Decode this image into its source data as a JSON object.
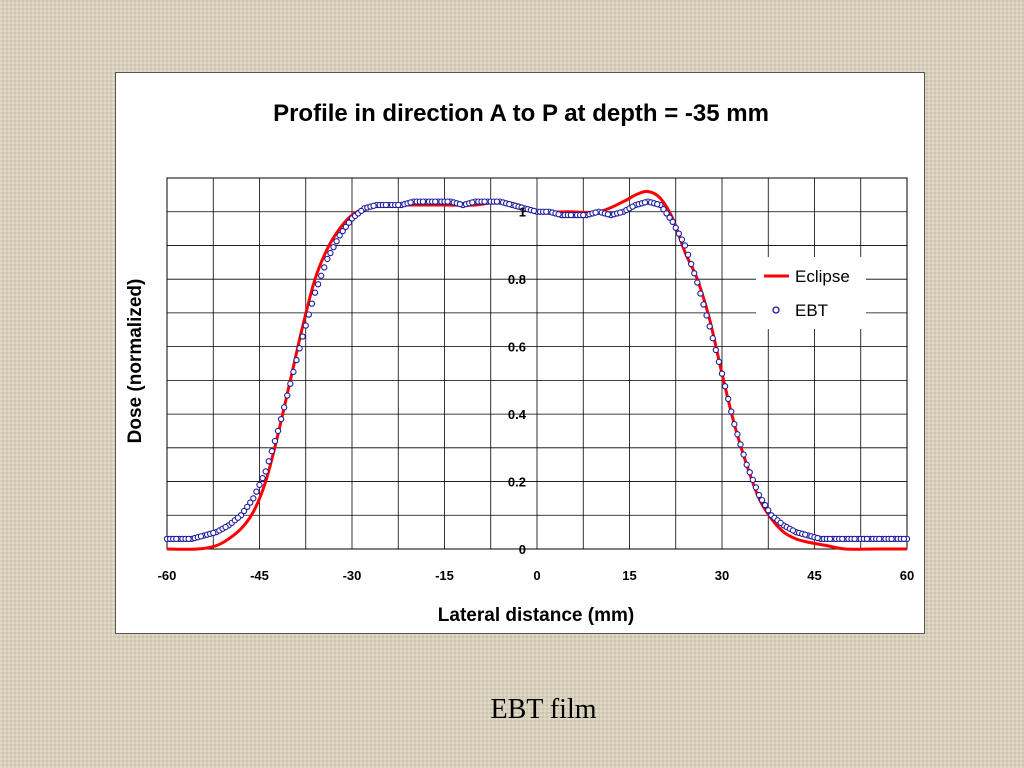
{
  "caption": "EBT film",
  "chart_data": {
    "type": "line",
    "title": "Profile in direction A to P at depth = -35 mm",
    "xlabel": "Lateral distance (mm)",
    "ylabel": "Dose (normalized)",
    "xlim": [
      -60,
      60
    ],
    "ylim": [
      0,
      1.1
    ],
    "x_ticks": [
      "-60",
      "-45",
      "-30",
      "-15",
      "0",
      "15",
      "30",
      "45",
      "60"
    ],
    "y_ticks": [
      "0",
      "0.2",
      "0.4",
      "0.6",
      "0.8",
      "1"
    ],
    "grid": true,
    "legend_position": "top-right",
    "series": [
      {
        "name": "Eclipse",
        "style": "line",
        "color": "#ff0000",
        "x": [
          -60,
          -55,
          -52,
          -50,
          -48,
          -46,
          -44,
          -42,
          -40,
          -38,
          -36,
          -34,
          -32,
          -30,
          -28,
          -26,
          -24,
          -20,
          -15,
          -10,
          -6,
          -3,
          0,
          5,
          10,
          14,
          16,
          18,
          20,
          22,
          24,
          26,
          28,
          30,
          32,
          34,
          36,
          38,
          40,
          42,
          44,
          47,
          50,
          55,
          60
        ],
        "y": [
          0,
          0,
          0.01,
          0.03,
          0.06,
          0.11,
          0.2,
          0.34,
          0.5,
          0.66,
          0.8,
          0.89,
          0.95,
          0.99,
          1.01,
          1.02,
          1.02,
          1.02,
          1.02,
          1.02,
          1.03,
          1.02,
          1.0,
          1.0,
          1.0,
          1.03,
          1.05,
          1.06,
          1.04,
          0.98,
          0.88,
          0.8,
          0.68,
          0.52,
          0.37,
          0.25,
          0.15,
          0.09,
          0.05,
          0.03,
          0.02,
          0.01,
          0,
          0,
          0
        ]
      },
      {
        "name": "EBT",
        "style": "marker",
        "color": "#1a1a9c",
        "x": [
          -60,
          -58,
          -56,
          -54,
          -52,
          -50,
          -48,
          -46,
          -44,
          -42,
          -40,
          -38,
          -36,
          -34,
          -32,
          -30,
          -28,
          -26,
          -24,
          -22,
          -20,
          -18,
          -16,
          -14,
          -12,
          -10,
          -8,
          -6,
          -4,
          -2,
          0,
          2,
          4,
          6,
          8,
          10,
          12,
          14,
          16,
          18,
          20,
          22,
          24,
          26,
          28,
          30,
          32,
          34,
          36,
          38,
          40,
          42,
          44,
          46,
          48,
          50,
          52,
          54,
          56,
          58,
          60
        ],
        "y": [
          0.03,
          0.03,
          0.03,
          0.04,
          0.05,
          0.07,
          0.1,
          0.15,
          0.23,
          0.35,
          0.49,
          0.63,
          0.76,
          0.86,
          0.93,
          0.98,
          1.01,
          1.02,
          1.02,
          1.02,
          1.03,
          1.03,
          1.03,
          1.03,
          1.02,
          1.03,
          1.03,
          1.03,
          1.02,
          1.01,
          1.0,
          1.0,
          0.99,
          0.99,
          0.99,
          1.0,
          0.99,
          1.0,
          1.02,
          1.03,
          1.02,
          0.97,
          0.9,
          0.79,
          0.66,
          0.52,
          0.37,
          0.25,
          0.16,
          0.1,
          0.07,
          0.05,
          0.04,
          0.03,
          0.03,
          0.03,
          0.03,
          0.03,
          0.03,
          0.03,
          0.03
        ]
      }
    ]
  }
}
